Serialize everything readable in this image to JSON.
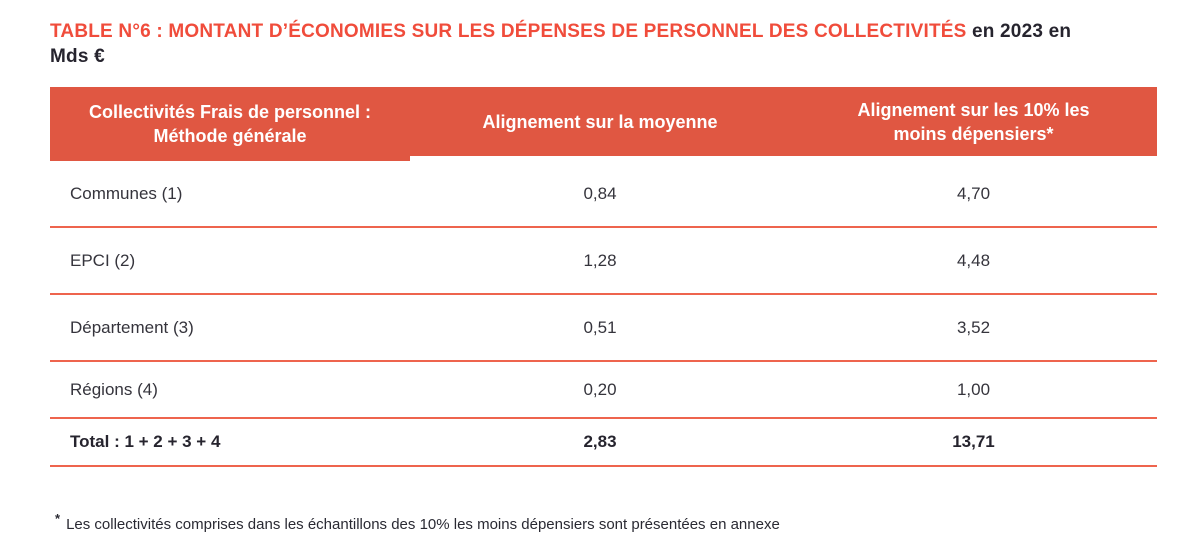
{
  "colors": {
    "title_red": "#F04C3B",
    "header_bg": "#E05742",
    "header_text": "#FFFFFF",
    "dark_text": "#26242E",
    "body_text": "#35343C",
    "separator": "#EE644D"
  },
  "title": {
    "red_part": "TABLE N°6 : MONTANT D’ÉCONOMIES SUR LES DÉPENSES DE PERSONNEL DES COLLECTIVITÉS",
    "dark_part_line1": "en 2023 en",
    "dark_part_line2": "Mds €"
  },
  "table": {
    "headers": {
      "col1_line1": "Collectivités Frais de personnel :",
      "col1_line2": "Méthode générale",
      "col2": "Alignement sur la moyenne",
      "col3_line1": "Alignement sur les 10% les",
      "col3_line2": "moins dépensiers*"
    },
    "rows": [
      {
        "label": "Communes (1)",
        "moyenne": "0,84",
        "depensiers": "4,70"
      },
      {
        "label": "EPCI (2)",
        "moyenne": "1,28",
        "depensiers": "4,48"
      },
      {
        "label": "Département (3)",
        "moyenne": "0,51",
        "depensiers": "3,52"
      },
      {
        "label": "Régions (4)",
        "moyenne": "0,20",
        "depensiers": "1,00"
      }
    ],
    "total": {
      "label": "Total : 1 + 2 + 3 + 4",
      "moyenne": "2,83",
      "depensiers": "13,71"
    }
  },
  "footnote": {
    "marker": "*",
    "text": "Les collectivités comprises dans les échantillons des 10% les moins dépensiers sont présentées en annexe"
  }
}
